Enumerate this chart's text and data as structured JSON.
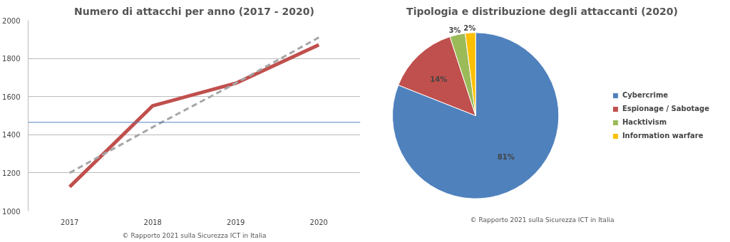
{
  "chart_data": [
    {
      "type": "line",
      "title": "Numero di attacchi per anno (2017 - 2020)",
      "categories": [
        "2017",
        "2018",
        "2019",
        "2020"
      ],
      "series": [
        {
          "color": "#c0504d",
          "values": [
            1127,
            1552,
            1670,
            1871
          ],
          "line_style": "solid"
        },
        {
          "color": "#a6a6a6",
          "values": [
            1200,
            1440,
            1670,
            1910
          ],
          "line_style": "dashed"
        }
      ],
      "ylim": [
        1000,
        2000
      ],
      "yticks": [
        1000,
        1200,
        1400,
        1600,
        1800,
        2000
      ],
      "grid": "y",
      "legend": false,
      "marker": "none",
      "ref_lines": [
        {
          "axis": "y",
          "value": 1465,
          "color": "#4f81bd"
        }
      ],
      "annotations": [
        "© Rapporto 2021 sulla Sicurezza ICT in Italia"
      ]
    },
    {
      "type": "pie",
      "title": "Tipologia e distribuzione degli attaccanti (2020)",
      "categories": [
        "Cybercrime",
        "Espionage / Sabotage",
        "Hacktivism",
        "Information warfare"
      ],
      "values": [
        81,
        14,
        3,
        2
      ],
      "colors": [
        "#4f81bd",
        "#c0504d",
        "#9bbb59",
        "#ffc000"
      ],
      "value_labels": [
        "81%",
        "14%",
        "3%",
        "2%"
      ],
      "legend": "right",
      "annotations": [
        "© Rapporto 2021 sulla Sicurezza ICT in Italia"
      ]
    }
  ]
}
